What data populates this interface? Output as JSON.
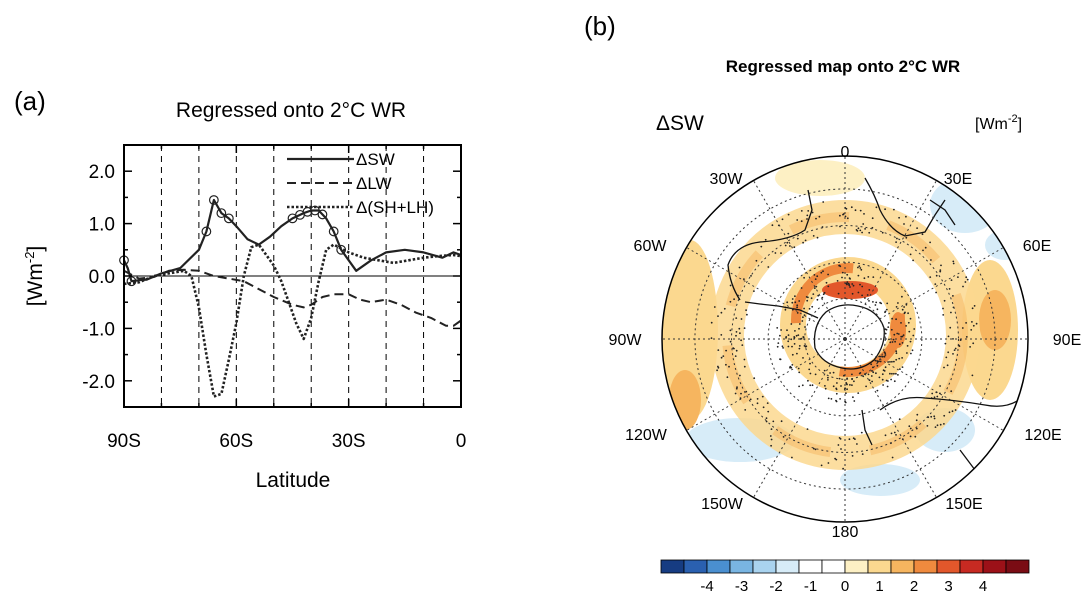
{
  "panel_a": {
    "letter": "(a)",
    "title": "Regressed onto 2°C WR",
    "ylabel_html": "[Wm-2]",
    "ylabel_base": "[Wm",
    "ylabel_sup": "-2",
    "ylabel_close": "]",
    "xlabel": "Latitude"
  },
  "panel_b": {
    "letter": "(b)",
    "title": "Regressed map onto 2°C WR",
    "variable": "ΔSW",
    "units_base": "[Wm",
    "units_sup": "-2",
    "units_close": "]",
    "lon_labels": [
      "0",
      "30E",
      "60E",
      "90E",
      "120E",
      "150E",
      "180",
      "150W",
      "120W",
      "90W",
      "60W",
      "30W"
    ],
    "colorbar": {
      "ticks": [
        "-4",
        "-3",
        "-2",
        "-1",
        "0",
        "1",
        "2",
        "3",
        "4"
      ],
      "colors": [
        "#163c82",
        "#2a60b0",
        "#4a8fd0",
        "#79b5e2",
        "#a9d3ef",
        "#d7ecf8",
        "#ffffff",
        "#ffffff",
        "#fdf0c4",
        "#fbd88f",
        "#f6b55f",
        "#ef8a3e",
        "#e2572b",
        "#c72a22",
        "#9c1118",
        "#7a0c14"
      ]
    }
  },
  "chart_data": [
    {
      "type": "line",
      "title": "Regressed onto 2°C WR",
      "xlabel": "Latitude",
      "ylabel": "[Wm-2]",
      "xlim": [
        -90,
        0
      ],
      "ylim": [
        -2.5,
        2.5
      ],
      "xticks": [
        -90,
        -60,
        -30,
        0
      ],
      "xtick_labels": [
        "90S",
        "60S",
        "30S",
        "0"
      ],
      "yticks": [
        2.0,
        1.0,
        0.0,
        -1.0,
        -2.0
      ],
      "ytick_labels": [
        "2.0",
        "1.0",
        "0.0",
        "-1.0",
        "-2.0"
      ],
      "grid": "vertical dashed lines every 10°",
      "legend_position": "top-right",
      "series": [
        {
          "name": "ΔSW",
          "style": "solid",
          "x": [
            -90,
            -89,
            -88,
            -86,
            -84,
            -80,
            -75,
            -70,
            -68,
            -66,
            -64,
            -62,
            -60,
            -57,
            -54,
            -51,
            -48,
            -45,
            -42,
            -40,
            -38,
            -36,
            -34,
            -32,
            -28,
            -24,
            -20,
            -15,
            -10,
            -5,
            -2,
            0
          ],
          "y": [
            0.3,
            0.15,
            -0.1,
            -0.08,
            -0.07,
            0.05,
            0.15,
            0.5,
            0.85,
            1.45,
            1.2,
            1.1,
            0.95,
            0.7,
            0.6,
            0.75,
            0.95,
            1.1,
            1.2,
            1.25,
            1.25,
            1.1,
            0.85,
            0.5,
            0.1,
            0.3,
            0.45,
            0.5,
            0.45,
            0.35,
            0.45,
            0.4
          ],
          "significant_x": [
            -90,
            -88,
            -68,
            -66,
            -64,
            -62,
            -45,
            -43,
            -41,
            -39,
            -37,
            -34,
            -32
          ]
        },
        {
          "name": "ΔLW",
          "style": "dashed",
          "x": [
            -90,
            -86,
            -82,
            -78,
            -74,
            -70,
            -66,
            -62,
            -58,
            -54,
            -50,
            -45,
            -42,
            -40,
            -37,
            -34,
            -30,
            -27,
            -24,
            -20,
            -16,
            -12,
            -8,
            -4,
            -2,
            0
          ],
          "y": [
            0.1,
            -0.05,
            -0.02,
            0.1,
            0.12,
            0.1,
            0.0,
            -0.05,
            -0.1,
            -0.25,
            -0.4,
            -0.55,
            -0.6,
            -0.55,
            -0.4,
            -0.35,
            -0.35,
            -0.45,
            -0.5,
            -0.45,
            -0.55,
            -0.7,
            -0.8,
            -0.95,
            -0.95,
            -0.85
          ]
        },
        {
          "name": "Δ(SH+LH)",
          "style": "dotted",
          "x": [
            -90,
            -86,
            -82,
            -78,
            -74,
            -72,
            -70,
            -68,
            -66,
            -64,
            -62,
            -60,
            -58,
            -56,
            -54,
            -52,
            -50,
            -48,
            -46,
            -44,
            -42,
            -40,
            -38,
            -36,
            -34,
            -30,
            -26,
            -22,
            -18,
            -14,
            -10,
            -6,
            -2,
            0
          ],
          "y": [
            -0.15,
            -0.12,
            0.0,
            0.05,
            0.1,
            0.0,
            -0.6,
            -1.5,
            -2.3,
            -2.25,
            -1.6,
            -0.9,
            0.0,
            0.55,
            0.6,
            0.4,
            0.2,
            -0.1,
            -0.5,
            -0.9,
            -1.2,
            -0.8,
            -0.1,
            0.5,
            0.6,
            0.45,
            0.35,
            0.3,
            0.25,
            0.3,
            0.35,
            0.38,
            0.4,
            0.38
          ]
        }
      ]
    },
    {
      "type": "heatmap",
      "title": "Regressed map onto 2°C WR",
      "subtitle": "ΔSW",
      "units": "[Wm-2]",
      "projection": "south polar stereographic",
      "colorbar_ticks": [
        -4,
        -3,
        -2,
        -1,
        0,
        1,
        2,
        3,
        4
      ]
    }
  ]
}
